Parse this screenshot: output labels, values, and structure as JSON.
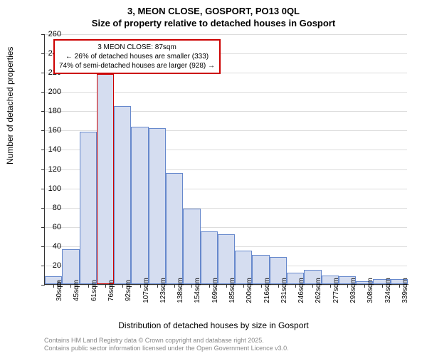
{
  "chart": {
    "type": "bar",
    "title_main": "3, MEON CLOSE, GOSPORT, PO13 0QL",
    "title_sub": "Size of property relative to detached houses in Gosport",
    "y_label": "Number of detached properties",
    "x_label": "Distribution of detached houses by size in Gosport",
    "ylim": [
      0,
      260
    ],
    "ytick_step": 20,
    "yticks": [
      0,
      20,
      40,
      60,
      80,
      100,
      120,
      140,
      160,
      180,
      200,
      220,
      240,
      260
    ],
    "xticks": [
      "30sqm",
      "45sqm",
      "61sqm",
      "76sqm",
      "92sqm",
      "107sqm",
      "123sqm",
      "138sqm",
      "154sqm",
      "169sqm",
      "185sqm",
      "200sqm",
      "216sqm",
      "231sqm",
      "246sqm",
      "262sqm",
      "277sqm",
      "293sqm",
      "308sqm",
      "324sqm",
      "339sqm"
    ],
    "values": [
      8,
      36,
      158,
      218,
      185,
      163,
      162,
      115,
      78,
      55,
      52,
      35,
      30,
      28,
      12,
      15,
      9,
      8,
      3,
      5,
      5
    ],
    "bar_fill": "#d5ddf0",
    "bar_border": "#6688cc",
    "grid_color": "#dddddd",
    "background_color": "#ffffff",
    "axis_color": "#333333",
    "highlight_index": 3,
    "highlight_color": "#cc0000",
    "bar_width_ratio": 1.0,
    "title_fontsize": 13,
    "label_fontsize": 12,
    "tick_fontsize": 11
  },
  "annotation": {
    "line1": "3 MEON CLOSE: 87sqm",
    "line2": "← 26% of detached houses are smaller (333)",
    "line3": "74% of semi-detached houses are larger (928) →",
    "border_color": "#cc0000",
    "background": "#ffffff",
    "fontsize": 10
  },
  "footer": {
    "line1": "Contains HM Land Registry data © Crown copyright and database right 2025.",
    "line2": "Contains public sector information licensed under the Open Government Licence v3.0.",
    "color": "#888888",
    "fontsize": 9
  }
}
